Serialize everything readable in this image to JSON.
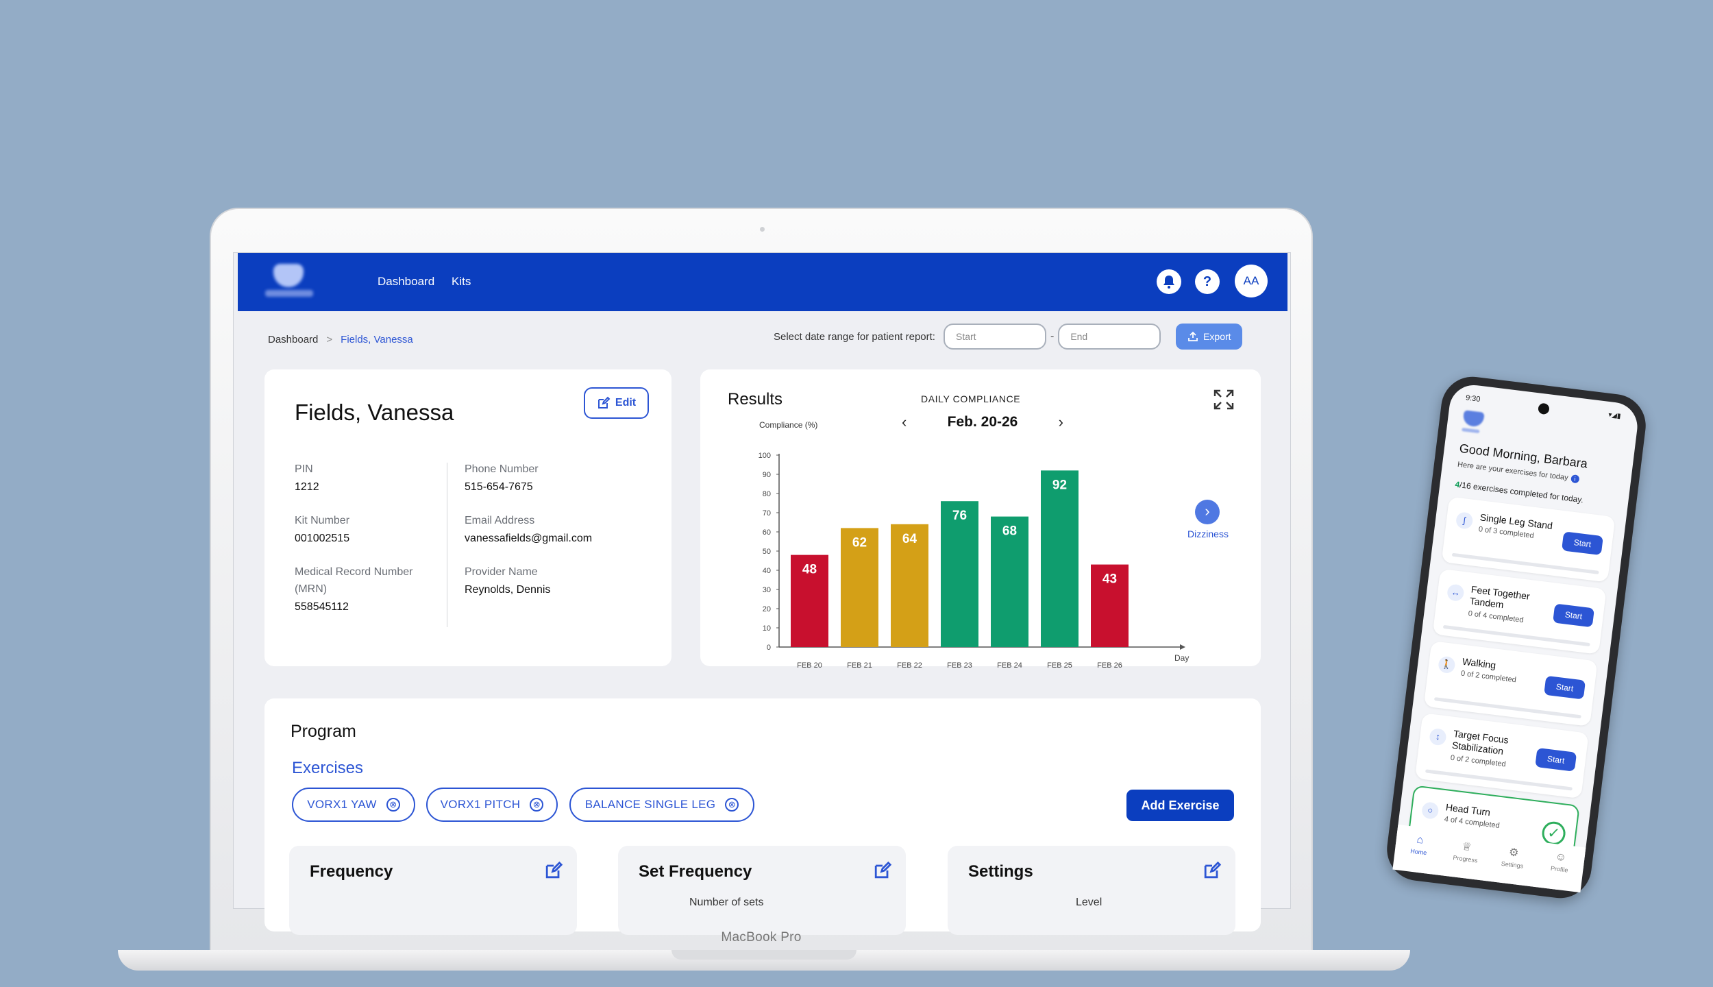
{
  "app": {
    "nav": {
      "dashboard": "Dashboard",
      "kits": "Kits",
      "avatar": "AA",
      "help": "?"
    },
    "breadcrumb": {
      "root": "Dashboard",
      "separator": ">",
      "current": "Fields, Vanessa"
    },
    "report": {
      "label": "Select date range for patient report:",
      "start_placeholder": "Start",
      "dash": "-",
      "end_placeholder": "End",
      "export": "Export"
    },
    "patient": {
      "name": "Fields, Vanessa",
      "edit": "Edit",
      "pin_label": "PIN",
      "pin": "1212",
      "kit_label": "Kit Number",
      "kit": "001002515",
      "mrn_label": "Medical Record Number (MRN)",
      "mrn": "558545112",
      "phone_label": "Phone Number",
      "phone": "515-654-7675",
      "email_label": "Email Address",
      "email": "vanessafields@gmail.com",
      "provider_label": "Provider Name",
      "provider": "Reynolds, Dennis"
    },
    "results": {
      "title": "Results",
      "subtitle": "DAILY COMPLIANCE",
      "week": "Feb. 20-26",
      "prev": "‹",
      "next": "›",
      "next_metric": "Dizziness"
    },
    "program": {
      "title": "Program",
      "exercises_heading": "Exercises",
      "chips": [
        "VORX1 YAW",
        "VORX1 PITCH",
        "BALANCE SINGLE LEG"
      ],
      "chip_remove": "⊗",
      "add_exercise": "Add Exercise",
      "frequency": "Frequency",
      "set_frequency": "Set Frequency",
      "set_frequency_sub": "Number of sets",
      "settings": "Settings",
      "settings_sub": "Level"
    }
  },
  "device_label": "MacBook Pro",
  "chart_data": {
    "type": "bar",
    "title": "DAILY COMPLIANCE",
    "xlabel": "Day",
    "ylabel": "Compliance (%)",
    "ylim": [
      0,
      100
    ],
    "yticks": [
      0,
      10,
      20,
      30,
      40,
      50,
      60,
      70,
      80,
      90,
      100
    ],
    "categories": [
      "FEB 20",
      "FEB 21",
      "FEB 22",
      "FEB 23",
      "FEB 24",
      "FEB 25",
      "FEB 26"
    ],
    "values": [
      48,
      62,
      64,
      76,
      68,
      92,
      43
    ],
    "bar_colors": [
      "#c8102e",
      "#d4a017",
      "#d4a017",
      "#0f9d6e",
      "#0f9d6e",
      "#0f9d6e",
      "#c8102e"
    ],
    "grid": false
  },
  "phone": {
    "time": "9:30",
    "greeting": "Good Morning, Barbara",
    "subtitle": "Here are your exercises for today",
    "done": "4",
    "total": "/16",
    "count_text": " exercises completed for today.",
    "exercises": [
      {
        "name": "Single Leg Stand",
        "progress": "0 of 3 completed",
        "action": "Start",
        "icon": "ʃ"
      },
      {
        "name": "Feet Together Tandem",
        "progress": "0 of 4 completed",
        "action": "Start",
        "icon": "↔"
      },
      {
        "name": "Walking",
        "progress": "0 of 2 completed",
        "action": "Start",
        "icon": "🚶"
      },
      {
        "name": "Target Focus Stabilization",
        "progress": "0 of 2 completed",
        "action": "Start",
        "icon": "↕"
      },
      {
        "name": "Head Turn",
        "progress": "4 of 4 completed",
        "action": "✓",
        "icon": "○"
      }
    ],
    "tabs": [
      "Home",
      "Progress",
      "Settings",
      "Profile"
    ]
  },
  "colors": {
    "brand": "#0b3ebf",
    "accent": "#2c55d4",
    "red": "#c8102e",
    "yellow": "#d4a017",
    "green": "#0f9d6e"
  }
}
